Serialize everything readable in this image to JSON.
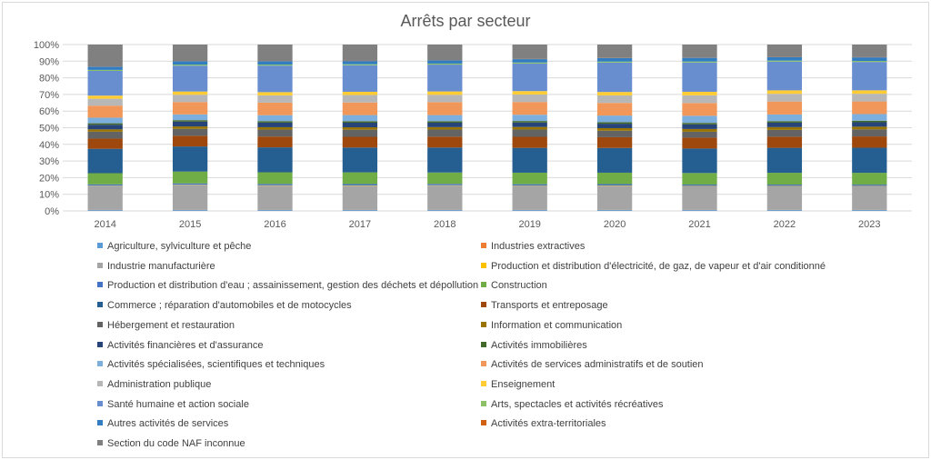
{
  "chart_data": {
    "type": "bar",
    "stacked": "percent",
    "title": "Arrêts par secteur",
    "xlabel": "",
    "ylabel": "",
    "ylim": [
      0,
      100
    ],
    "yticks": [
      "0%",
      "10%",
      "20%",
      "30%",
      "40%",
      "50%",
      "60%",
      "70%",
      "80%",
      "90%",
      "100%"
    ],
    "categories": [
      "2014",
      "2015",
      "2016",
      "2017",
      "2018",
      "2019",
      "2020",
      "2021",
      "2022",
      "2023"
    ],
    "grid": true,
    "legend_position": "bottom",
    "series": [
      {
        "name": "Agriculture, sylviculture et pêche",
        "color": "#5b9bd5",
        "values": [
          0.5,
          0.5,
          0.5,
          0.5,
          0.5,
          0.5,
          0.5,
          0.5,
          0.5,
          0.5
        ]
      },
      {
        "name": "Industries extractives",
        "color": "#ed7d31",
        "values": [
          0.1,
          0.1,
          0.1,
          0.1,
          0.1,
          0.1,
          0.1,
          0.1,
          0.1,
          0.1
        ]
      },
      {
        "name": "Industrie manufacturière",
        "color": "#a5a5a5",
        "values": [
          14.5,
          14.6,
          14.3,
          14.2,
          14.3,
          14.1,
          14.1,
          13.9,
          13.8,
          13.8
        ]
      },
      {
        "name": "Production et distribution d'électricité, de gaz, de vapeur et d'air conditionné",
        "color": "#ffc000",
        "values": [
          0.2,
          0.2,
          0.2,
          0.2,
          0.2,
          0.2,
          0.2,
          0.2,
          0.2,
          0.2
        ]
      },
      {
        "name": "Production et distribution d'eau ; assainissement, gestion des déchets et dépollution",
        "color": "#4472c4",
        "values": [
          0.8,
          0.8,
          0.8,
          0.8,
          0.8,
          0.8,
          0.8,
          0.8,
          0.8,
          0.8
        ]
      },
      {
        "name": "Construction",
        "color": "#70ad47",
        "values": [
          6.8,
          7.0,
          6.9,
          6.9,
          6.7,
          6.8,
          6.7,
          6.8,
          6.9,
          6.9
        ]
      },
      {
        "name": "Commerce ; réparation d'automobiles et de motocycles",
        "color": "#255e91",
        "values": [
          14.8,
          14.8,
          14.7,
          14.6,
          14.7,
          14.6,
          14.5,
          14.4,
          14.6,
          14.7
        ]
      },
      {
        "name": "Transports et entreposage",
        "color": "#9e480e",
        "values": [
          6.2,
          6.3,
          6.4,
          6.3,
          6.4,
          6.5,
          6.3,
          6.4,
          6.5,
          6.6
        ]
      },
      {
        "name": "Hébergement et restauration",
        "color": "#636363",
        "values": [
          4.2,
          4.1,
          4.1,
          4.2,
          4.2,
          4.3,
          3.8,
          3.5,
          4.0,
          4.1
        ]
      },
      {
        "name": "Information et communication",
        "color": "#997300",
        "values": [
          1.4,
          1.4,
          1.4,
          1.4,
          1.4,
          1.5,
          1.5,
          1.6,
          1.6,
          1.6
        ]
      },
      {
        "name": "Activités financières et d'assurance",
        "color": "#264478",
        "values": [
          2.8,
          2.8,
          2.7,
          2.7,
          2.6,
          2.6,
          2.6,
          2.7,
          2.6,
          2.6
        ]
      },
      {
        "name": "Activités immobilières",
        "color": "#43682b",
        "values": [
          0.9,
          0.9,
          0.9,
          0.9,
          0.9,
          0.9,
          0.9,
          0.9,
          0.9,
          0.9
        ]
      },
      {
        "name": "Activités spécialisées, scientifiques et techniques",
        "color": "#7cafdd",
        "values": [
          3.4,
          3.4,
          3.5,
          3.6,
          3.6,
          3.7,
          3.9,
          4.2,
          3.9,
          3.9
        ]
      },
      {
        "name": "Activités de services administratifs et de soutien",
        "color": "#f1975a",
        "values": [
          7.3,
          7.3,
          7.4,
          7.4,
          7.6,
          7.5,
          7.4,
          7.5,
          7.6,
          7.4
        ]
      },
      {
        "name": "Administration publique",
        "color": "#b7b7b7",
        "values": [
          4.2,
          4.3,
          4.3,
          4.4,
          4.3,
          4.4,
          4.4,
          4.5,
          4.5,
          4.5
        ]
      },
      {
        "name": "Enseignement",
        "color": "#ffcd33",
        "values": [
          1.9,
          1.9,
          1.9,
          1.9,
          2.0,
          2.0,
          2.0,
          2.1,
          2.0,
          2.0
        ]
      },
      {
        "name": "Santé humaine et action sociale",
        "color": "#698ed0",
        "values": [
          15.0,
          15.3,
          15.7,
          15.6,
          15.8,
          16.2,
          17.2,
          17.2,
          16.8,
          16.6
        ]
      },
      {
        "name": "Arts, spectacles et activités récréatives",
        "color": "#8cc168",
        "values": [
          0.6,
          0.6,
          0.6,
          0.6,
          0.6,
          0.6,
          0.6,
          0.6,
          0.6,
          0.6
        ]
      },
      {
        "name": "Autres activités de services",
        "color": "#327dc2",
        "values": [
          1.9,
          1.9,
          1.9,
          1.9,
          2.0,
          2.0,
          2.1,
          2.2,
          2.1,
          2.1
        ]
      },
      {
        "name": "Activités extra-territoriales",
        "color": "#d26012",
        "values": [
          0.1,
          0.1,
          0.1,
          0.1,
          0.1,
          0.1,
          0.1,
          0.1,
          0.1,
          0.1
        ]
      },
      {
        "name": "Section du code NAF inconnue",
        "color": "#808080",
        "values": [
          13.4,
          9.8,
          9.8,
          9.6,
          9.1,
          8.5,
          7.8,
          7.7,
          7.2,
          7.4
        ]
      }
    ]
  }
}
